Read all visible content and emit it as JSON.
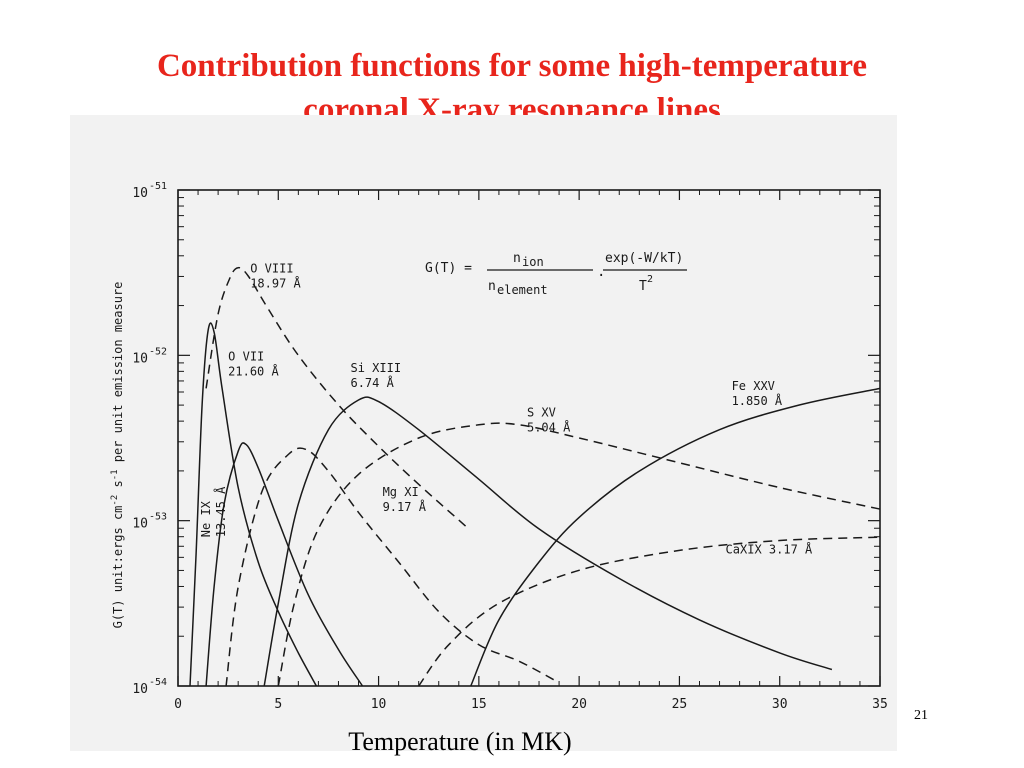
{
  "slide": {
    "title_line1": "Contribution functions for some high-temperature",
    "title_line2": "coronal X-ray resonance lines",
    "xcaption": "Temperature (in MK)",
    "page_number": "21"
  },
  "colors": {
    "title": "#e8251c",
    "ink": "#1a1a1a",
    "paper": "#f2f2f2"
  },
  "chart_data": {
    "type": "line",
    "ylabel": "G(T) unit:erg s cm^-2 s^-1 per unit emission measure",
    "ylabel_parts": [
      "G(T) unit:ergs cm",
      "-2",
      " s",
      "-1",
      " per unit emission measure"
    ],
    "yscale": "log",
    "xlim": [
      0,
      35
    ],
    "ylim_exponent": [
      -54,
      -51
    ],
    "x_ticks": [
      0,
      5,
      10,
      15,
      20,
      25,
      30,
      35
    ],
    "y_ticks": [
      {
        "exp": -51,
        "base": "10",
        "sup": "-51"
      },
      {
        "exp": -52,
        "base": "10",
        "sup": "-52"
      },
      {
        "exp": -53,
        "base": "10",
        "sup": "-53"
      },
      {
        "exp": -54,
        "base": "10",
        "sup": "-54"
      }
    ],
    "formula": {
      "lhs": "G(T) =",
      "num1": "n",
      "num1_sub": "ion",
      "den1": "n",
      "den1_sub": "element",
      "dot": ".",
      "num2": "exp(-W/kT)",
      "den2": "T",
      "den2_sup": "2"
    },
    "series": [
      {
        "name": "O VIII 18.97 Å",
        "label1": "O VIII",
        "label2": "18.97 Å",
        "dash": true,
        "label_at": [
          3.6,
          -51.5
        ],
        "points": [
          [
            1.4,
            -52.2
          ],
          [
            2,
            -51.75
          ],
          [
            2.6,
            -51.53
          ],
          [
            3,
            -51.47
          ],
          [
            3.5,
            -51.52
          ],
          [
            4.5,
            -51.72
          ],
          [
            6,
            -52.0
          ],
          [
            8,
            -52.3
          ],
          [
            10,
            -52.55
          ],
          [
            12,
            -52.78
          ],
          [
            14.5,
            -53.05
          ]
        ]
      },
      {
        "name": "O VII 21.60 Å",
        "label1": "O VII",
        "label2": "21.60 Å",
        "dash": false,
        "label_at": [
          2.5,
          -52.03
        ],
        "points": [
          [
            0.6,
            -54
          ],
          [
            0.9,
            -53.2
          ],
          [
            1.2,
            -52.3
          ],
          [
            1.5,
            -51.85
          ],
          [
            1.8,
            -51.86
          ],
          [
            2.2,
            -52.2
          ],
          [
            3,
            -52.8
          ],
          [
            4,
            -53.25
          ],
          [
            5,
            -53.55
          ],
          [
            6,
            -53.8
          ],
          [
            6.9,
            -54
          ]
        ]
      },
      {
        "name": "Ne IX 13.45 Å",
        "label1": "Ne IX",
        "label2": "13.45 Å",
        "dash": false,
        "label_at": [
          1.6,
          -53.1
        ],
        "rotate": -90,
        "points": [
          [
            1.4,
            -54
          ],
          [
            1.8,
            -53.4
          ],
          [
            2.3,
            -52.9
          ],
          [
            3.0,
            -52.58
          ],
          [
            3.4,
            -52.54
          ],
          [
            4.0,
            -52.68
          ],
          [
            5,
            -53.0
          ],
          [
            6.5,
            -53.45
          ],
          [
            8,
            -53.78
          ],
          [
            9.2,
            -54
          ]
        ]
      },
      {
        "name": "Mg XI 9.17 Å",
        "label1": "Mg XI",
        "label2": "9.17 Å",
        "dash": true,
        "label_at": [
          10.2,
          -52.85
        ],
        "points": [
          [
            2.4,
            -54
          ],
          [
            3.0,
            -53.4
          ],
          [
            4.2,
            -52.82
          ],
          [
            5.5,
            -52.6
          ],
          [
            6.4,
            -52.57
          ],
          [
            7.5,
            -52.7
          ],
          [
            9,
            -52.95
          ],
          [
            11,
            -53.25
          ],
          [
            13,
            -53.55
          ],
          [
            15,
            -53.75
          ],
          [
            17,
            -53.85
          ],
          [
            19,
            -53.98
          ]
        ]
      },
      {
        "name": "Si XIII 6.74 Å",
        "label1": "Si XIII",
        "label2": "6.74 Å",
        "dash": false,
        "label_at": [
          8.6,
          -52.1
        ],
        "points": [
          [
            4.3,
            -54
          ],
          [
            5,
            -53.5
          ],
          [
            6,
            -52.9
          ],
          [
            7.5,
            -52.45
          ],
          [
            9,
            -52.27
          ],
          [
            10,
            -52.28
          ],
          [
            12,
            -52.45
          ],
          [
            15,
            -52.75
          ],
          [
            18,
            -53.05
          ],
          [
            22,
            -53.35
          ],
          [
            26,
            -53.6
          ],
          [
            30,
            -53.8
          ],
          [
            32.6,
            -53.9
          ]
        ]
      },
      {
        "name": "S XV 5.04 Å",
        "label1": "S XV",
        "label2": "5.04 Å",
        "dash": true,
        "label_at": [
          17.4,
          -52.37
        ],
        "points": [
          [
            5,
            -54
          ],
          [
            5.8,
            -53.5
          ],
          [
            7,
            -53.05
          ],
          [
            9,
            -52.72
          ],
          [
            12,
            -52.5
          ],
          [
            15,
            -52.42
          ],
          [
            17,
            -52.42
          ],
          [
            20,
            -52.5
          ],
          [
            25,
            -52.65
          ],
          [
            30,
            -52.8
          ],
          [
            35,
            -52.93
          ]
        ]
      },
      {
        "name": "Fe XXV 1.850 Å",
        "label1": "Fe XXV",
        "label2": "1.850 Å",
        "dash": false,
        "label_at": [
          27.6,
          -52.21
        ],
        "points": [
          [
            14.6,
            -54
          ],
          [
            16,
            -53.6
          ],
          [
            18,
            -53.25
          ],
          [
            20,
            -52.98
          ],
          [
            23,
            -52.7
          ],
          [
            27,
            -52.45
          ],
          [
            31,
            -52.3
          ],
          [
            35,
            -52.2
          ]
        ]
      },
      {
        "name": "CaXIX 3.17 Å",
        "label1": "CaXIX 3.17 Å",
        "label2": "",
        "dash": true,
        "label_at": [
          27.3,
          -53.2
        ],
        "points": [
          [
            12,
            -54
          ],
          [
            13.5,
            -53.75
          ],
          [
            16,
            -53.5
          ],
          [
            20,
            -53.3
          ],
          [
            25,
            -53.18
          ],
          [
            30,
            -53.12
          ],
          [
            35,
            -53.1
          ]
        ]
      }
    ]
  }
}
